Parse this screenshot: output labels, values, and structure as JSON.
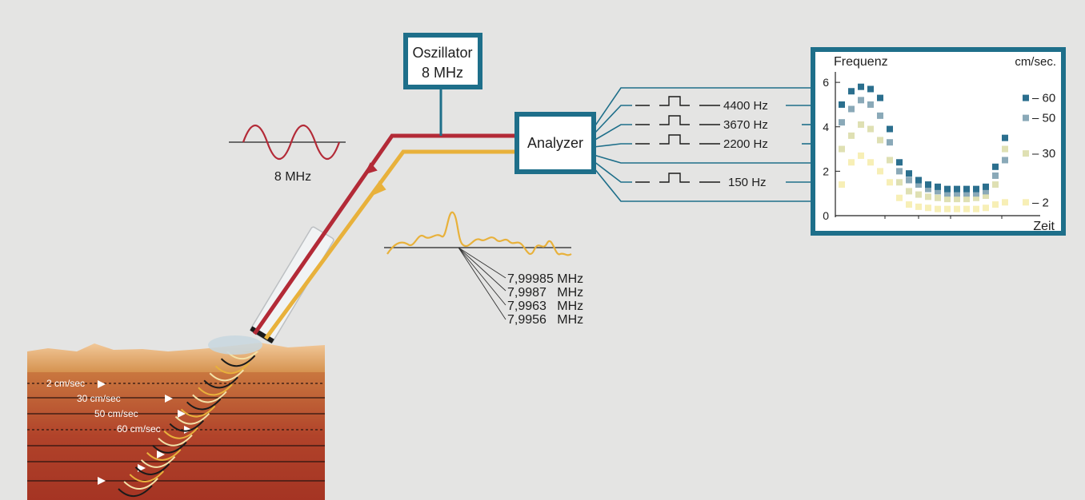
{
  "oscillator": {
    "line1": "Oszillator",
    "line2": "8 MHz"
  },
  "analyzer": {
    "label": "Analyzer"
  },
  "wave_label": "8 MHz",
  "channels": [
    "4400 Hz",
    "3670 Hz",
    "2200 Hz",
    "150 Hz"
  ],
  "echo_frequencies": [
    "7,99985 MHz",
    "7,9987   MHz",
    "7,9963   MHz",
    "7,9956   MHz"
  ],
  "tissue_speeds": [
    "2 cm/sec",
    "30 cm/sec",
    "50 cm/sec",
    "60 cm/sec"
  ],
  "colors": {
    "emit": "#b32a37",
    "echo": "#e8b13b",
    "frame": "#1e6f8a",
    "tissue": "#b5462a"
  },
  "chart_data": {
    "type": "scatter",
    "y_axis_title": "Frequenz",
    "x_axis_title": "Zeit",
    "right_axis_title": "cm/sec.",
    "y_ticks": [
      "0",
      "2",
      "4",
      "6"
    ],
    "ylim": [
      0,
      6.4
    ],
    "right_labels": [
      {
        "label": "60",
        "y": 5.3
      },
      {
        "label": "50",
        "y": 4.4
      },
      {
        "label": "30",
        "y": 2.8
      },
      {
        "label": "2",
        "y": 0.6
      }
    ],
    "series": [
      {
        "name": "60",
        "color": "#2b6f8e",
        "values": [
          5.0,
          5.6,
          5.8,
          5.7,
          5.3,
          3.9,
          2.4,
          1.9,
          1.6,
          1.4,
          1.3,
          1.2,
          1.2,
          1.2,
          1.2,
          1.3,
          2.2,
          3.5
        ]
      },
      {
        "name": "50",
        "color": "#8aa9b8",
        "values": [
          4.2,
          4.8,
          5.2,
          5.0,
          4.5,
          3.3,
          2.0,
          1.6,
          1.4,
          1.2,
          1.1,
          1.0,
          1.0,
          1.0,
          1.0,
          1.1,
          1.8,
          2.5
        ]
      },
      {
        "name": "30",
        "color": "#dfe0b3",
        "values": [
          3.0,
          3.6,
          4.1,
          3.9,
          3.4,
          2.5,
          1.5,
          1.1,
          0.95,
          0.85,
          0.8,
          0.75,
          0.75,
          0.75,
          0.8,
          0.9,
          1.4,
          3.0
        ]
      },
      {
        "name": "2",
        "color": "#f7efb6",
        "values": [
          1.4,
          2.4,
          2.7,
          2.4,
          2.0,
          1.5,
          0.8,
          0.5,
          0.4,
          0.35,
          0.3,
          0.3,
          0.3,
          0.3,
          0.3,
          0.35,
          0.5,
          0.6
        ]
      }
    ]
  }
}
